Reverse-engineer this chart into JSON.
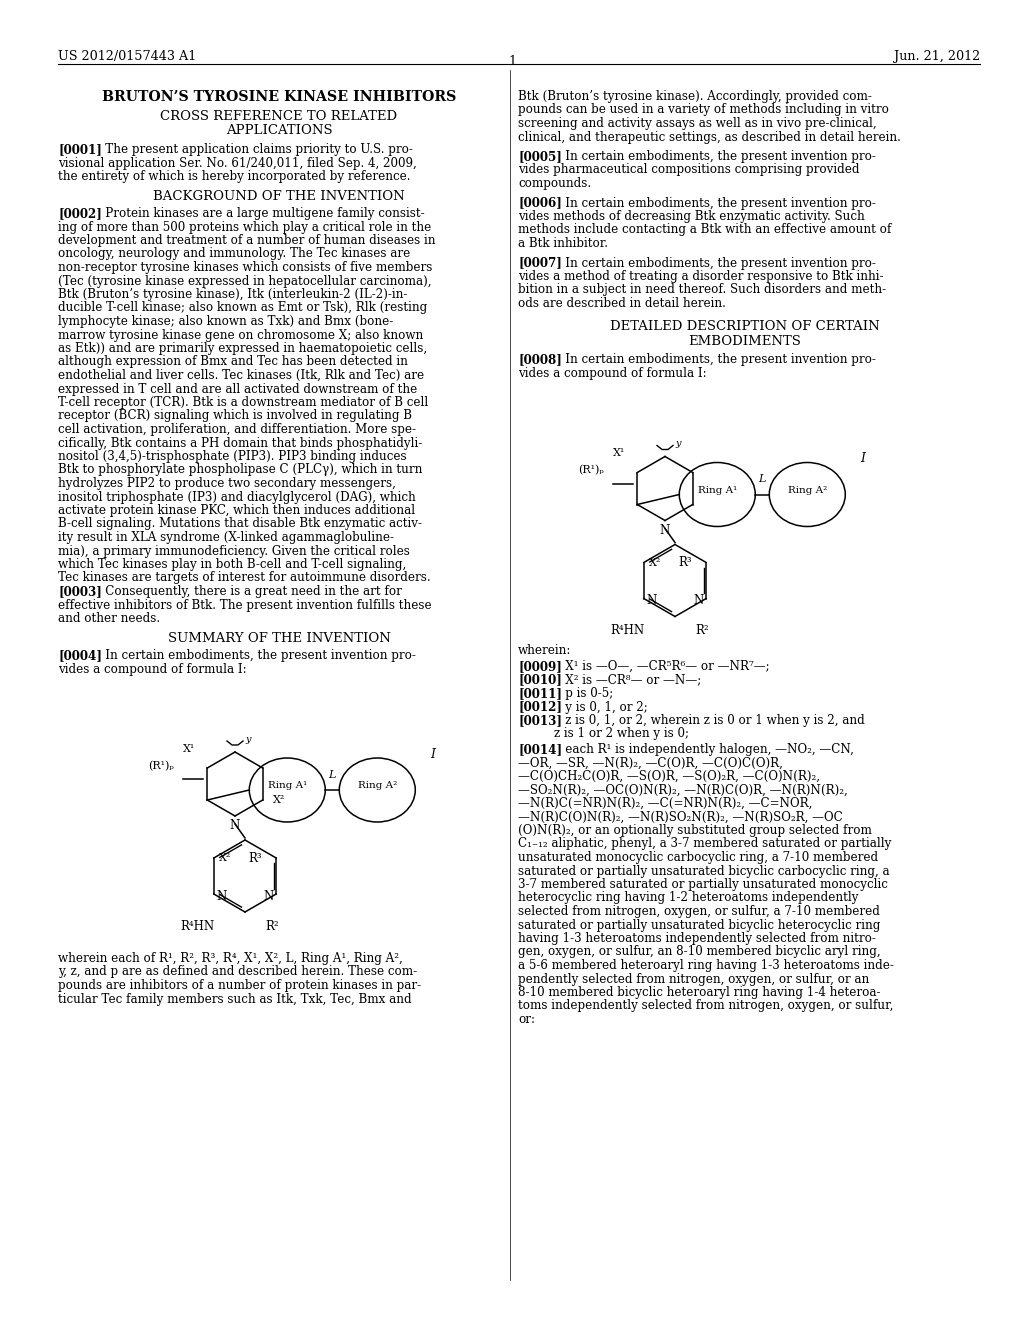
{
  "background_color": "#ffffff",
  "header_left": "US 2012/0157443 A1",
  "header_right": "Jun. 21, 2012",
  "page_number": "1",
  "left_col": {
    "title": "BRUTON’S TYROSINE KINASE INHIBITORS",
    "s1_title": "CROSS REFERENCE TO RELATED\nAPPLICATIONS",
    "p0001": [
      "[0001]   The present application claims priority to U.S. pro-",
      "visional application Ser. No. 61/240,011, filed Sep. 4, 2009,",
      "the entirety of which is hereby incorporated by reference."
    ],
    "s2_title": "BACKGROUND OF THE INVENTION",
    "p0002": [
      "[0002]   Protein kinases are a large multigene family consist-",
      "ing of more than 500 proteins which play a critical role in the",
      "development and treatment of a number of human diseases in",
      "oncology, neurology and immunology. The Tec kinases are",
      "non-receptor tyrosine kinases which consists of five members",
      "(Tec (tyrosine kinase expressed in hepatocellular carcinoma),",
      "Btk (Bruton’s tyrosine kinase), Itk (interleukin-2 (IL-2)-in-",
      "ducible T-cell kinase; also known as Emt or Tsk), Rlk (resting",
      "lymphocyte kinase; also known as Txk) and Bmx (bone-",
      "marrow tyrosine kinase gene on chromosome X; also known",
      "as Etk)) and are primarily expressed in haematopoietic cells,",
      "although expression of Bmx and Tec has been detected in",
      "endothelial and liver cells. Tec kinases (Itk, Rlk and Tec) are",
      "expressed in T cell and are all activated downstream of the",
      "T-cell receptor (TCR). Btk is a downstream mediator of B cell",
      "receptor (BCR) signaling which is involved in regulating B",
      "cell activation, proliferation, and differentiation. More spe-",
      "cifically, Btk contains a PH domain that binds phosphatidyli-",
      "nositol (3,4,5)-trisphosphate (PIP3). PIP3 binding induces",
      "Btk to phosphorylate phospholipase C (PLCγ), which in turn",
      "hydrolyzes PIP2 to produce two secondary messengers,",
      "inositol triphosphate (IP3) and diacylglycerol (DAG), which",
      "activate protein kinase PKC, which then induces additional",
      "B-cell signaling. Mutations that disable Btk enzymatic activ-",
      "ity result in XLA syndrome (X-linked agammaglobuline-",
      "mia), a primary immunodeficiency. Given the critical roles",
      "which Tec kinases play in both B-cell and T-cell signaling,",
      "Tec kinases are targets of interest for autoimmune disorders."
    ],
    "p0003": [
      "[0003]   Consequently, there is a great need in the art for",
      "effective inhibitors of Btk. The present invention fulfills these",
      "and other needs."
    ],
    "s3_title": "SUMMARY OF THE INVENTION",
    "p0004": [
      "[0004]   In certain embodiments, the present invention pro-",
      "vides a compound of formula I:"
    ],
    "p_wherein": [
      "wherein each of R¹, R², R³, R⁴, X¹, X², L, Ring A¹, Ring A²,",
      "y, z, and p are as defined and described herein. These com-",
      "pounds are inhibitors of a number of protein kinases in par-",
      "ticular Tec family members such as Itk, Txk, Tec, Bmx and"
    ]
  },
  "right_col": {
    "p_cont": [
      "Btk (Bruton’s tyrosine kinase). Accordingly, provided com-",
      "pounds can be used in a variety of methods including in vitro",
      "screening and activity assays as well as in vivo pre-clinical,",
      "clinical, and therapeutic settings, as described in detail herein."
    ],
    "p0005": [
      "[0005]   In certain embodiments, the present invention pro-",
      "vides pharmaceutical compositions comprising provided",
      "compounds."
    ],
    "p0006": [
      "[0006]   In certain embodiments, the present invention pro-",
      "vides methods of decreasing Btk enzymatic activity. Such",
      "methods include contacting a Btk with an effective amount of",
      "a Btk inhibitor."
    ],
    "p0007": [
      "[0007]   In certain embodiments, the present invention pro-",
      "vides a method of treating a disorder responsive to Btk inhi-",
      "bition in a subject in need thereof. Such disorders and meth-",
      "ods are described in detail herein."
    ],
    "s4_title": "DETAILED DESCRIPTION OF CERTAIN\nEMBODIMENTS",
    "p0008": [
      "[0008]   In certain embodiments, the present invention pro-",
      "vides a compound of formula I:"
    ],
    "wherein": "wherein:",
    "p0009": "[0009]   X¹ is —O—, —CR⁵R⁶— or —NR⁷—;",
    "p0010": "[0010]   X² is —CR⁸— or —N—;",
    "p0011": "[0011]   p is 0-5;",
    "p0012": "[0012]   y is 0, 1, or 2;",
    "p0013a": "[0013]   z is 0, 1, or 2, wherein z is 0 or 1 when y is 2, and",
    "p0013b": "z is 1 or 2 when y is 0;",
    "p0014": [
      "[0014]   each R¹ is independently halogen, —NO₂, —CN,",
      "—OR, —SR, —N(R)₂, —C(O)R, —C(O)C(O)R,",
      "—C(O)CH₂C(O)R, —S(O)R, —S(O)₂R, —C(O)N(R)₂,",
      "—SO₂N(R)₂, —OC(O)N(R)₂, —N(R)C(O)R, —N(R)N(R)₂,",
      "—N(R)C(=NR)N(R)₂, —C(=NR)N(R)₂, —C=NOR,",
      "—N(R)C(O)N(R)₂, —N(R)SO₂N(R)₂, —N(R)SO₂R, —OC",
      "(O)N(R)₂, or an optionally substituted group selected from",
      "C₁₋₁₂ aliphatic, phenyl, a 3-7 membered saturated or partially",
      "unsaturated monocyclic carbocyclic ring, a 7-10 membered",
      "saturated or partially unsaturated bicyclic carbocyclic ring, a",
      "3-7 membered saturated or partially unsaturated monocyclic",
      "heterocyclic ring having 1-2 heteroatoms independently",
      "selected from nitrogen, oxygen, or sulfur, a 7-10 membered",
      "saturated or partially unsaturated bicyclic heterocyclic ring",
      "having 1-3 heteroatoms independently selected from nitro-",
      "gen, oxygen, or sulfur, an 8-10 membered bicyclic aryl ring,",
      "a 5-6 membered heteroaryl ring having 1-3 heteroatoms inde-",
      "pendently selected from nitrogen, oxygen, or sulfur, or an",
      "8-10 membered bicyclic heteroaryl ring having 1-4 heteroa-",
      "toms independently selected from nitrogen, oxygen, or sulfur,",
      "or:"
    ]
  }
}
